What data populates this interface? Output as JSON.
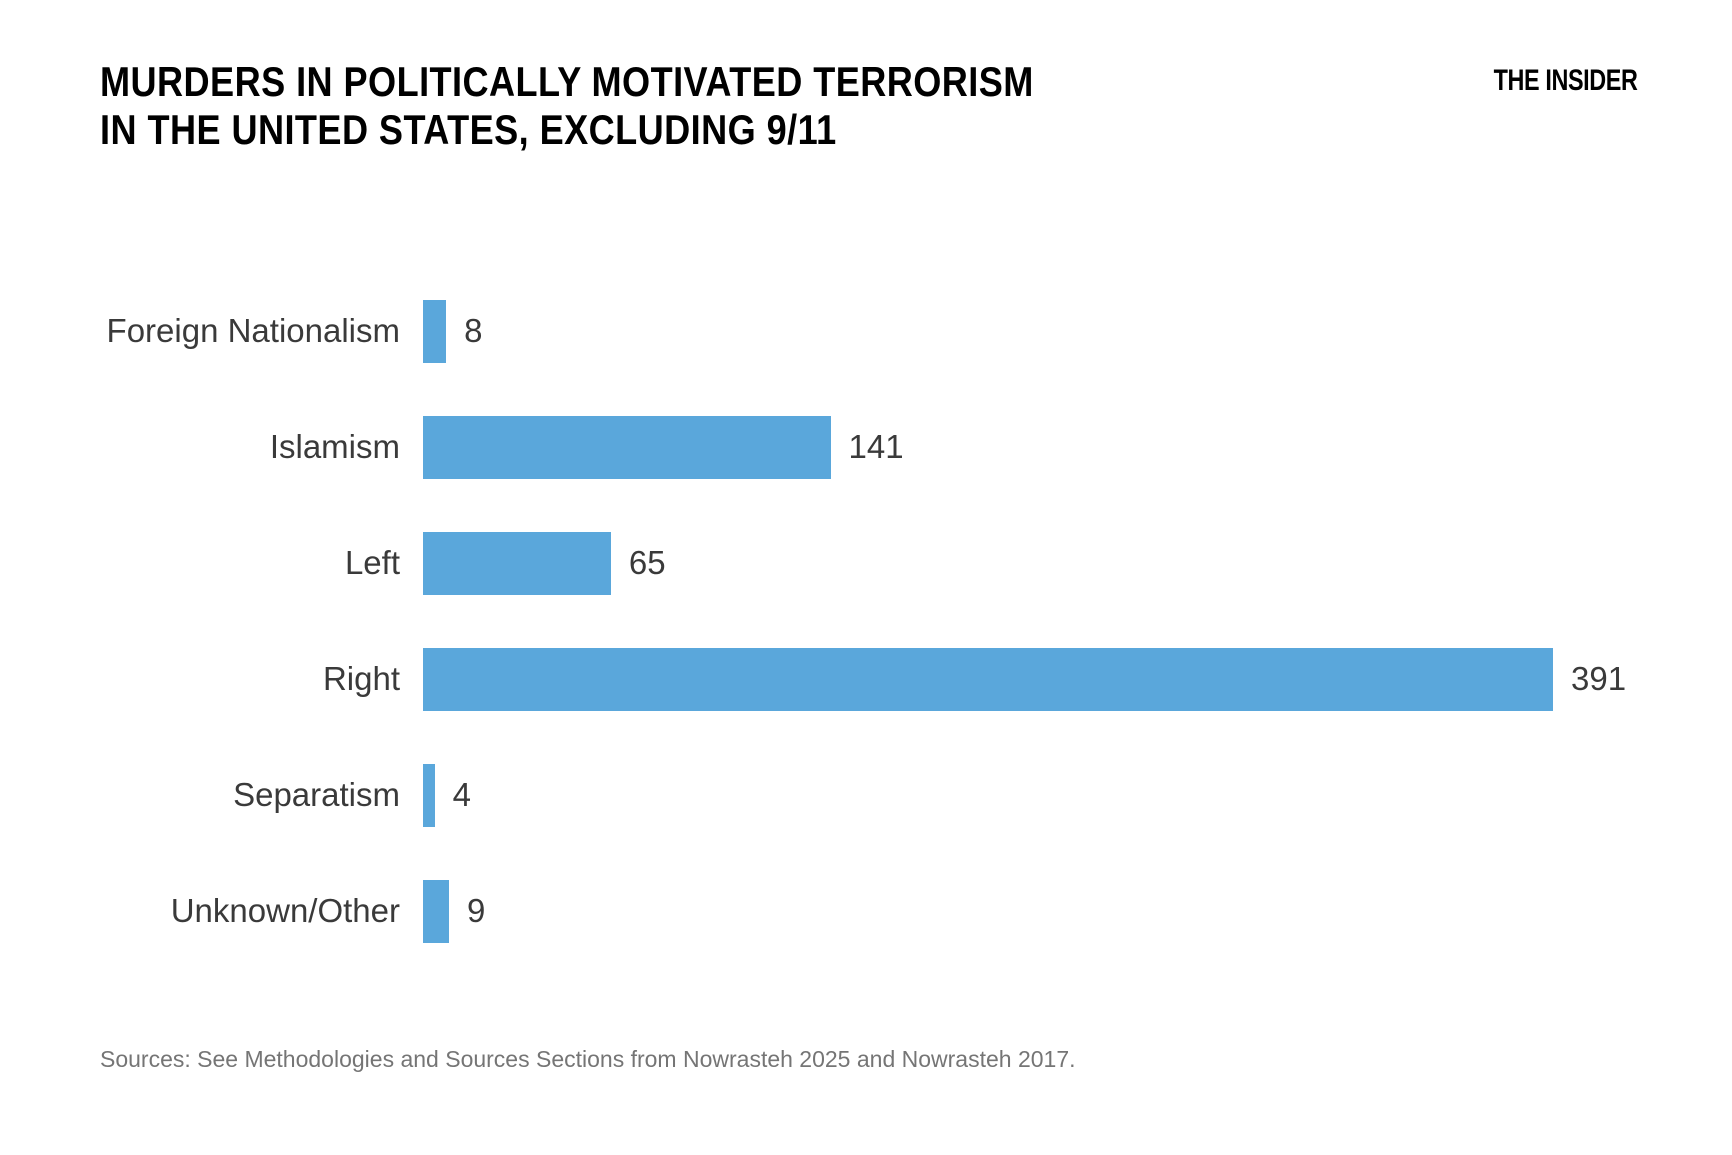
{
  "header": {
    "title_line1": "MURDERS IN POLITICALLY MOTIVATED TERRORISM",
    "title_line2": "IN THE UNITED STATES, EXCLUDING 9/11",
    "logo": "THE INSIDER"
  },
  "chart_data": {
    "type": "bar",
    "orientation": "horizontal",
    "title": "MURDERS IN POLITICALLY MOTIVATED TERRORISM IN THE UNITED STATES, EXCLUDING 9/11",
    "categories": [
      "Foreign Nationalism",
      "Islamism",
      "Left",
      "Right",
      "Separatism",
      "Unknown/Other"
    ],
    "values": [
      8,
      141,
      65,
      391,
      4,
      9
    ],
    "xlabel": "",
    "ylabel": "",
    "xlim": [
      0,
      391
    ],
    "grid": false,
    "legend": false,
    "value_labels_shown": true
  },
  "footer": {
    "source": "Sources: See Methodologies and Sources Sections from Nowrasteh 2025 and Nowrasteh 2017."
  },
  "colors": {
    "bar": "#5AA7DB",
    "label_text": "#3a3a3a",
    "title_text": "#000000",
    "source_text": "#757575",
    "background": "#ffffff"
  }
}
